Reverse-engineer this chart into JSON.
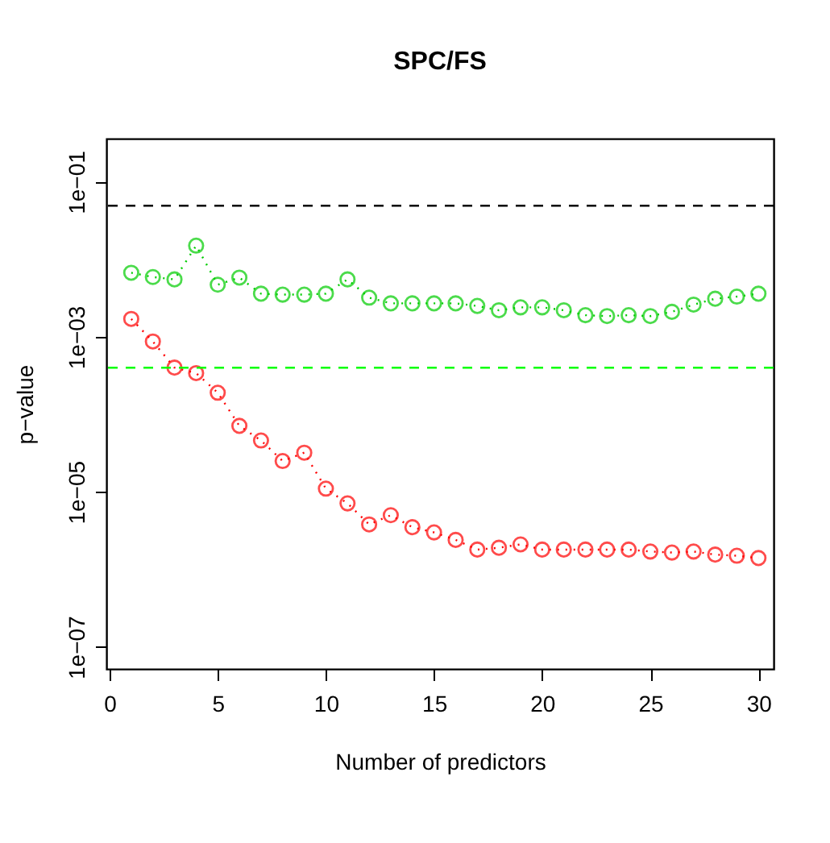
{
  "chart_data": {
    "type": "line",
    "title": "SPC/FS",
    "xlabel": "Number of predictors",
    "ylabel": "p−value",
    "x": [
      1,
      2,
      3,
      4,
      5,
      6,
      7,
      8,
      9,
      10,
      11,
      12,
      13,
      14,
      15,
      16,
      17,
      18,
      19,
      20,
      21,
      22,
      23,
      24,
      25,
      26,
      27,
      28,
      29,
      30
    ],
    "series": [
      {
        "color": "#00cd00",
        "values": [
          0.0067,
          0.0059,
          0.0055,
          0.015,
          0.0047,
          0.0058,
          0.0036,
          0.0035,
          0.0035,
          0.0036,
          0.0055,
          0.0032,
          0.0027,
          0.0027,
          0.0027,
          0.0027,
          0.0025,
          0.0022,
          0.0024,
          0.0024,
          0.0022,
          0.0019,
          0.00185,
          0.0019,
          0.00185,
          0.0021,
          0.0026,
          0.0031,
          0.0033,
          0.0036
        ]
      },
      {
        "color": "#ff0000",
        "values": [
          0.0017,
          0.00087,
          0.0004,
          0.00034,
          0.00019,
          7.1e-05,
          4.6e-05,
          2.5e-05,
          3.2e-05,
          1.1e-05,
          7.1e-06,
          3.8e-06,
          5e-06,
          3.5e-06,
          3e-06,
          2.4e-06,
          1.8e-06,
          1.9e-06,
          2.1e-06,
          1.8e-06,
          1.8e-06,
          1.8e-06,
          1.8e-06,
          1.8e-06,
          1.7e-06,
          1.65e-06,
          1.7e-06,
          1.55e-06,
          1.5e-06,
          1.4e-06
        ]
      }
    ],
    "log": "y",
    "xlim": [
      -0.15,
      30.7
    ],
    "xticks": [
      0,
      5,
      10,
      15,
      20,
      25,
      30
    ],
    "ylim": [
      5.2e-08,
      0.36
    ],
    "yticks": [
      {
        "value": 1e-07,
        "label": "1e−07"
      },
      {
        "value": 1e-05,
        "label": "1e−05"
      },
      {
        "value": 0.001,
        "label": "1e−03"
      },
      {
        "value": 0.1,
        "label": "1e−01"
      }
    ],
    "ref_lines": [
      {
        "axis": "y",
        "value": 0.049,
        "color": "#000000",
        "line_style": "dashed"
      },
      {
        "axis": "y",
        "value": 0.0004,
        "color": "#00ff00",
        "line_style": "dashed"
      }
    ],
    "marker": "circle",
    "line_style": "dotted",
    "grid": false,
    "legend": false
  }
}
